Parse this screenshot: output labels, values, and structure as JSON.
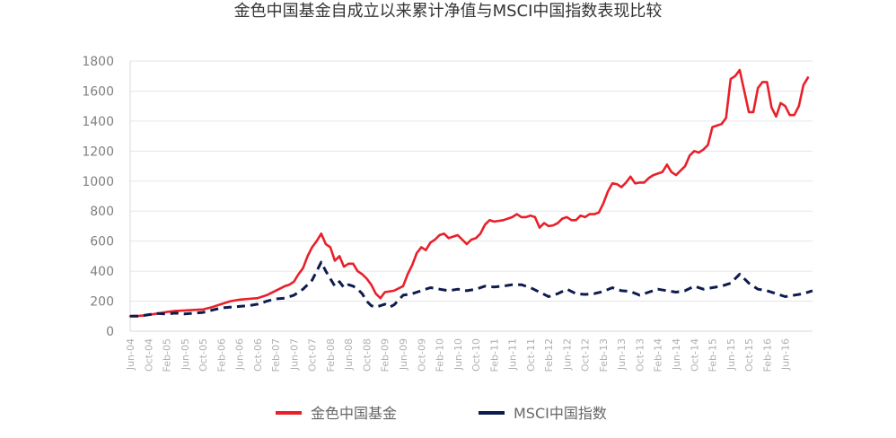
{
  "chart_data": {
    "type": "line",
    "title": "金色中国基金自成立以来累计净值与MSCI中国指数表现比较",
    "ylim": [
      0,
      1800
    ],
    "yticks": [
      0,
      200,
      400,
      600,
      800,
      1000,
      1200,
      1400,
      1600,
      1800
    ],
    "xlim": [
      0,
      150
    ],
    "grid": true,
    "legend_position": "bottom",
    "x_ticks": [
      {
        "i": 0,
        "label": "Jun-04"
      },
      {
        "i": 4,
        "label": "Oct-04"
      },
      {
        "i": 8,
        "label": "Feb-05"
      },
      {
        "i": 12,
        "label": "Jun-05"
      },
      {
        "i": 16,
        "label": "Oct-05"
      },
      {
        "i": 20,
        "label": "Feb-06"
      },
      {
        "i": 24,
        "label": "Jun-06"
      },
      {
        "i": 28,
        "label": "Oct-06"
      },
      {
        "i": 32,
        "label": "Feb-07"
      },
      {
        "i": 36,
        "label": "Jun-07"
      },
      {
        "i": 40,
        "label": "Oct-07"
      },
      {
        "i": 44,
        "label": "Feb-08"
      },
      {
        "i": 48,
        "label": "Jun-08"
      },
      {
        "i": 52,
        "label": "Oct-08"
      },
      {
        "i": 56,
        "label": "Feb-09"
      },
      {
        "i": 60,
        "label": "Jun-09"
      },
      {
        "i": 64,
        "label": "Oct-09"
      },
      {
        "i": 68,
        "label": "Feb-10"
      },
      {
        "i": 72,
        "label": "Jun-10"
      },
      {
        "i": 76,
        "label": "Oct-10"
      },
      {
        "i": 80,
        "label": "Feb-11"
      },
      {
        "i": 84,
        "label": "Jun-11"
      },
      {
        "i": 88,
        "label": "Oct-11"
      },
      {
        "i": 92,
        "label": "Feb-12"
      },
      {
        "i": 96,
        "label": "Jun-12"
      },
      {
        "i": 100,
        "label": "Oct-12"
      },
      {
        "i": 104,
        "label": "Feb-13"
      },
      {
        "i": 108,
        "label": "Jun-13"
      },
      {
        "i": 112,
        "label": "Oct-13"
      },
      {
        "i": 116,
        "label": "Feb-14"
      },
      {
        "i": 120,
        "label": "Jun-14"
      },
      {
        "i": 124,
        "label": "Oct-14"
      },
      {
        "i": 128,
        "label": "Feb-15"
      },
      {
        "i": 132,
        "label": "Jun-15"
      },
      {
        "i": 136,
        "label": "Oct-15"
      },
      {
        "i": 140,
        "label": "Feb-16"
      },
      {
        "i": 144,
        "label": "Jun-16"
      }
    ],
    "series": [
      {
        "name": "金色中国基金",
        "color": "#e8202a",
        "style": "solid",
        "points": [
          [
            0,
            100
          ],
          [
            2,
            102
          ],
          [
            4,
            108
          ],
          [
            6,
            118
          ],
          [
            8,
            128
          ],
          [
            10,
            135
          ],
          [
            12,
            138
          ],
          [
            14,
            142
          ],
          [
            16,
            145
          ],
          [
            18,
            160
          ],
          [
            20,
            180
          ],
          [
            22,
            200
          ],
          [
            24,
            210
          ],
          [
            26,
            215
          ],
          [
            28,
            220
          ],
          [
            30,
            240
          ],
          [
            32,
            270
          ],
          [
            34,
            300
          ],
          [
            35,
            310
          ],
          [
            36,
            330
          ],
          [
            37,
            380
          ],
          [
            38,
            420
          ],
          [
            39,
            500
          ],
          [
            40,
            560
          ],
          [
            41,
            600
          ],
          [
            42,
            650
          ],
          [
            43,
            580
          ],
          [
            44,
            560
          ],
          [
            45,
            470
          ],
          [
            46,
            500
          ],
          [
            47,
            430
          ],
          [
            48,
            450
          ],
          [
            49,
            450
          ],
          [
            50,
            400
          ],
          [
            51,
            380
          ],
          [
            52,
            350
          ],
          [
            53,
            310
          ],
          [
            54,
            250
          ],
          [
            55,
            220
          ],
          [
            56,
            260
          ],
          [
            58,
            270
          ],
          [
            60,
            300
          ],
          [
            61,
            380
          ],
          [
            62,
            440
          ],
          [
            63,
            520
          ],
          [
            64,
            560
          ],
          [
            65,
            540
          ],
          [
            66,
            590
          ],
          [
            67,
            610
          ],
          [
            68,
            640
          ],
          [
            69,
            650
          ],
          [
            70,
            620
          ],
          [
            71,
            630
          ],
          [
            72,
            640
          ],
          [
            73,
            610
          ],
          [
            74,
            580
          ],
          [
            75,
            610
          ],
          [
            76,
            620
          ],
          [
            77,
            650
          ],
          [
            78,
            710
          ],
          [
            79,
            740
          ],
          [
            80,
            730
          ],
          [
            81,
            735
          ],
          [
            82,
            740
          ],
          [
            83,
            750
          ],
          [
            84,
            760
          ],
          [
            85,
            780
          ],
          [
            86,
            760
          ],
          [
            87,
            760
          ],
          [
            88,
            770
          ],
          [
            89,
            760
          ],
          [
            90,
            690
          ],
          [
            91,
            720
          ],
          [
            92,
            700
          ],
          [
            93,
            705
          ],
          [
            94,
            720
          ],
          [
            95,
            750
          ],
          [
            96,
            760
          ],
          [
            97,
            740
          ],
          [
            98,
            740
          ],
          [
            99,
            770
          ],
          [
            100,
            760
          ],
          [
            101,
            780
          ],
          [
            102,
            780
          ],
          [
            103,
            790
          ],
          [
            104,
            850
          ],
          [
            105,
            930
          ],
          [
            106,
            985
          ],
          [
            107,
            980
          ],
          [
            108,
            960
          ],
          [
            109,
            990
          ],
          [
            110,
            1030
          ],
          [
            111,
            985
          ],
          [
            112,
            990
          ],
          [
            113,
            990
          ],
          [
            114,
            1020
          ],
          [
            115,
            1040
          ],
          [
            116,
            1050
          ],
          [
            117,
            1060
          ],
          [
            118,
            1110
          ],
          [
            119,
            1060
          ],
          [
            120,
            1040
          ],
          [
            121,
            1070
          ],
          [
            122,
            1100
          ],
          [
            123,
            1170
          ],
          [
            124,
            1200
          ],
          [
            125,
            1190
          ],
          [
            126,
            1210
          ],
          [
            127,
            1240
          ],
          [
            128,
            1360
          ],
          [
            129,
            1370
          ],
          [
            130,
            1380
          ],
          [
            131,
            1420
          ],
          [
            132,
            1680
          ],
          [
            133,
            1700
          ],
          [
            134,
            1740
          ],
          [
            135,
            1600
          ],
          [
            136,
            1460
          ],
          [
            137,
            1460
          ],
          [
            138,
            1620
          ],
          [
            139,
            1660
          ],
          [
            140,
            1660
          ],
          [
            141,
            1490
          ],
          [
            142,
            1430
          ],
          [
            143,
            1520
          ],
          [
            144,
            1500
          ],
          [
            145,
            1440
          ],
          [
            146,
            1440
          ],
          [
            147,
            1500
          ],
          [
            148,
            1640
          ],
          [
            149,
            1690
          ]
        ]
      },
      {
        "name": "MSCI中国指数",
        "color": "#0d1c4e",
        "style": "dashed",
        "points": [
          [
            0,
            100
          ],
          [
            2,
            100
          ],
          [
            4,
            110
          ],
          [
            6,
            118
          ],
          [
            8,
            115
          ],
          [
            10,
            120
          ],
          [
            12,
            115
          ],
          [
            14,
            120
          ],
          [
            16,
            125
          ],
          [
            18,
            140
          ],
          [
            20,
            155
          ],
          [
            22,
            160
          ],
          [
            24,
            165
          ],
          [
            26,
            170
          ],
          [
            28,
            180
          ],
          [
            30,
            200
          ],
          [
            32,
            215
          ],
          [
            34,
            220
          ],
          [
            36,
            240
          ],
          [
            38,
            280
          ],
          [
            40,
            340
          ],
          [
            42,
            460
          ],
          [
            43,
            400
          ],
          [
            44,
            350
          ],
          [
            45,
            300
          ],
          [
            46,
            330
          ],
          [
            47,
            290
          ],
          [
            48,
            310
          ],
          [
            49,
            300
          ],
          [
            50,
            280
          ],
          [
            51,
            250
          ],
          [
            52,
            200
          ],
          [
            53,
            170
          ],
          [
            54,
            160
          ],
          [
            55,
            170
          ],
          [
            56,
            180
          ],
          [
            57,
            160
          ],
          [
            58,
            175
          ],
          [
            60,
            240
          ],
          [
            62,
            250
          ],
          [
            64,
            270
          ],
          [
            66,
            290
          ],
          [
            68,
            280
          ],
          [
            70,
            270
          ],
          [
            72,
            280
          ],
          [
            74,
            270
          ],
          [
            76,
            280
          ],
          [
            78,
            300
          ],
          [
            80,
            295
          ],
          [
            82,
            300
          ],
          [
            84,
            310
          ],
          [
            86,
            310
          ],
          [
            88,
            290
          ],
          [
            90,
            260
          ],
          [
            92,
            230
          ],
          [
            94,
            250
          ],
          [
            96,
            280
          ],
          [
            98,
            250
          ],
          [
            100,
            245
          ],
          [
            102,
            250
          ],
          [
            104,
            265
          ],
          [
            106,
            290
          ],
          [
            108,
            270
          ],
          [
            110,
            265
          ],
          [
            112,
            240
          ],
          [
            114,
            260
          ],
          [
            116,
            280
          ],
          [
            118,
            270
          ],
          [
            120,
            260
          ],
          [
            122,
            270
          ],
          [
            124,
            300
          ],
          [
            126,
            280
          ],
          [
            128,
            290
          ],
          [
            130,
            300
          ],
          [
            132,
            320
          ],
          [
            134,
            380
          ],
          [
            136,
            320
          ],
          [
            138,
            280
          ],
          [
            140,
            270
          ],
          [
            142,
            250
          ],
          [
            144,
            230
          ],
          [
            146,
            240
          ],
          [
            148,
            250
          ],
          [
            150,
            270
          ],
          [
            152,
            290
          ]
        ]
      }
    ]
  }
}
